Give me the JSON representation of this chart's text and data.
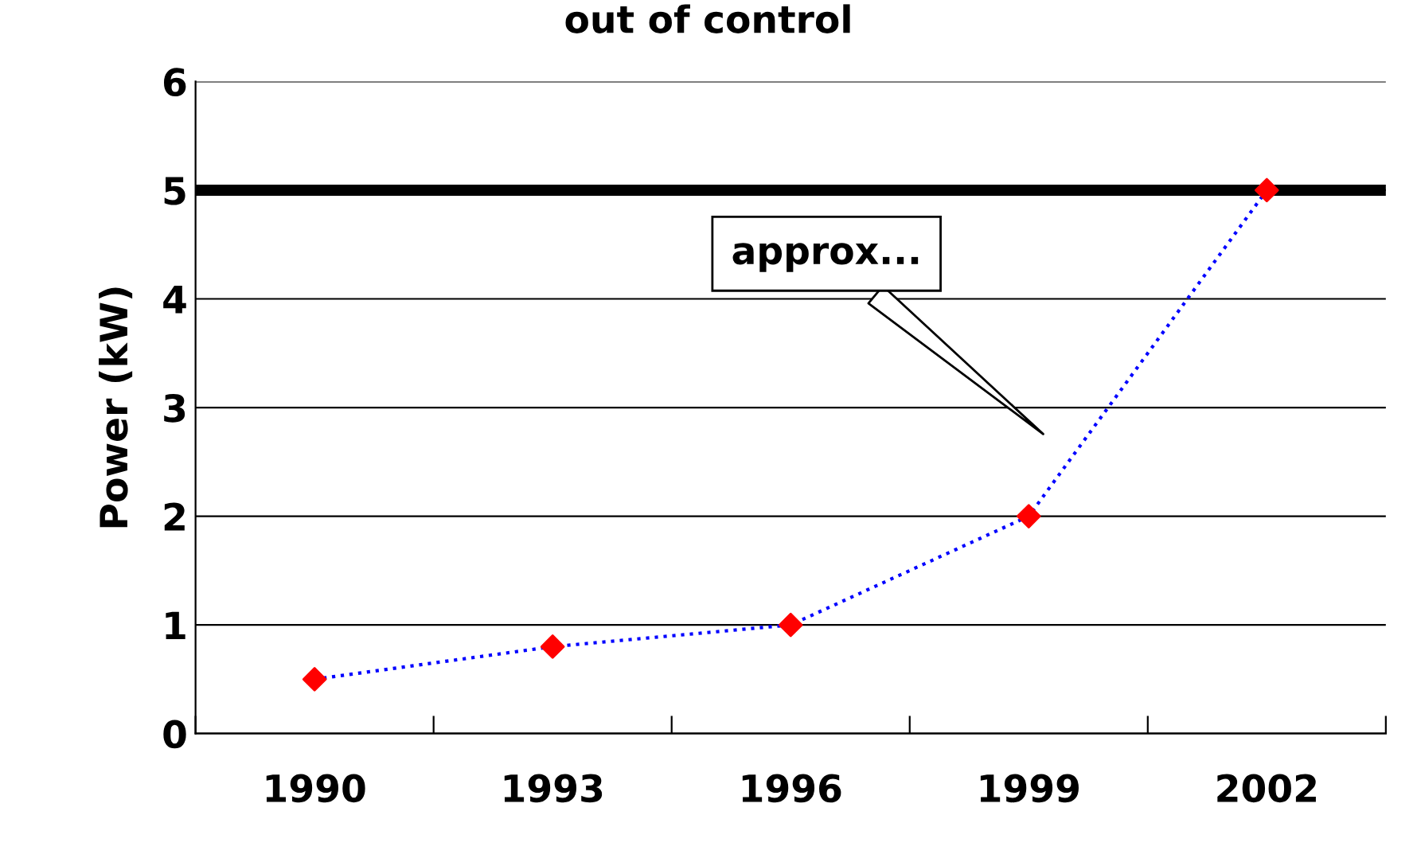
{
  "chart_data": {
    "type": "line",
    "title": "out of control",
    "ylabel": "Power (kW)",
    "categories": [
      "1990",
      "1993",
      "1996",
      "1999",
      "2002"
    ],
    "series": [
      {
        "color": "#0000ff",
        "colors": [
          "#ff0000",
          "#ff0000",
          "#ff0000",
          "#ff0000",
          "#ff0000"
        ],
        "values": [
          0.5,
          0.8,
          1.0,
          2.0,
          5.0
        ]
      }
    ],
    "marker": "diamond",
    "line_style": "dotted",
    "ylim": [
      0,
      6
    ],
    "yticks": [
      0,
      1,
      2,
      3,
      4,
      5,
      6
    ],
    "grid": "y",
    "ref_lines": [
      {
        "axis": "y",
        "value": 5,
        "color": "#000000"
      }
    ],
    "annotations": [
      "approx..."
    ]
  }
}
